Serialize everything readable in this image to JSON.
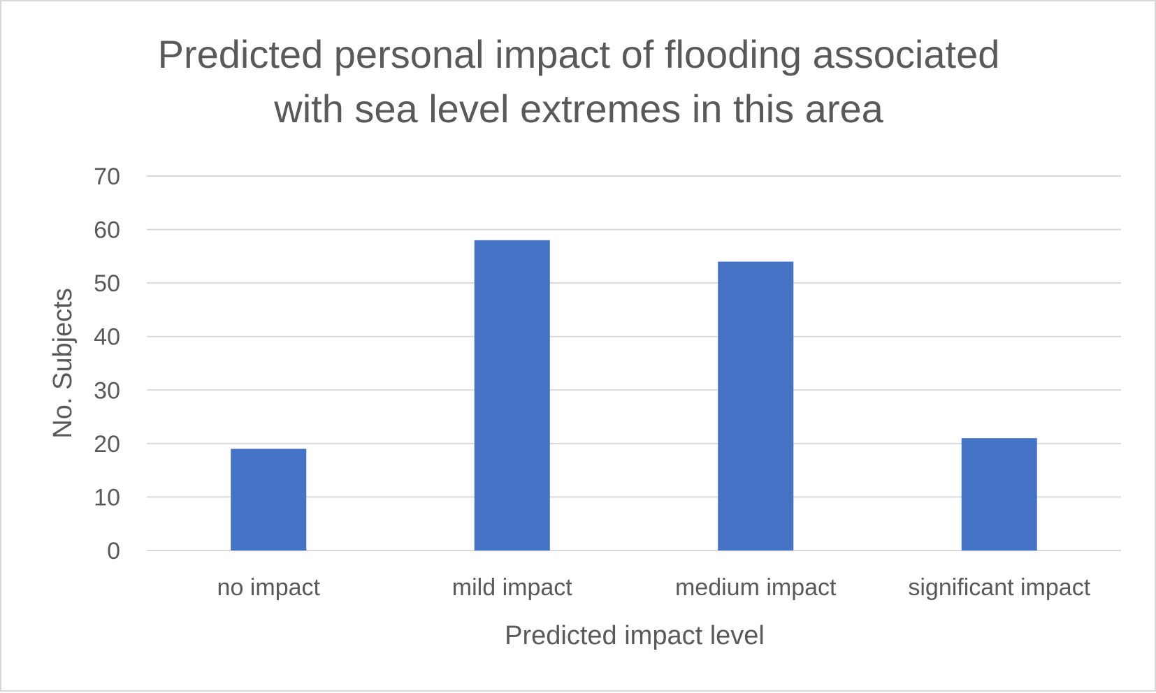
{
  "chart_data": {
    "type": "bar",
    "title_lines": [
      "Predicted personal impact of flooding associated",
      "with sea level extremes in this area"
    ],
    "categories": [
      "no impact",
      "mild impact",
      "medium impact",
      "significant impact"
    ],
    "values": [
      19,
      58,
      54,
      21
    ],
    "xlabel": "Predicted impact level",
    "ylabel": "No. Subjects",
    "ylim": [
      0,
      70
    ],
    "yticks": [
      0,
      10,
      20,
      30,
      40,
      50,
      60,
      70
    ],
    "grid": true,
    "legend": "none",
    "colors": {
      "bar": "#4472c4",
      "text": "#595959",
      "grid": "#d9d9d9"
    }
  }
}
